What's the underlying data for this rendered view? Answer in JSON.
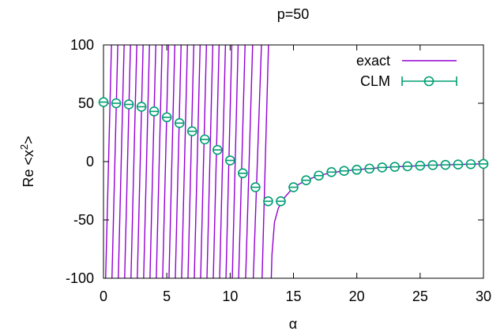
{
  "chart_data": {
    "type": "line",
    "title": "p=50",
    "xlabel": "α",
    "ylabel_base": "Re <x",
    "ylabel_sup": "2",
    "ylabel_end": ">",
    "xlim": [
      0,
      30
    ],
    "ylim": [
      -100,
      100
    ],
    "xticks": [
      0,
      5,
      10,
      15,
      20,
      25,
      30
    ],
    "yticks": [
      -100,
      -50,
      0,
      50,
      100
    ],
    "xtick_labels": [
      "0",
      "5",
      "10",
      "15",
      "20",
      "25",
      "30"
    ],
    "ytick_labels": [
      "-100",
      "-50",
      "0",
      "50",
      "100"
    ],
    "grid": false,
    "legend_position": "top-right",
    "series": [
      {
        "name": "exact",
        "style": "line",
        "color": "#9400d3",
        "asymptote_x": [
          0.15,
          0.65,
          1.15,
          1.65,
          2.15,
          2.65,
          3.15,
          3.65,
          4.15,
          4.65,
          5.15,
          5.65,
          6.15,
          6.65,
          7.15,
          7.65,
          8.15,
          8.65,
          9.15,
          9.65,
          10.15,
          10.65,
          11.2,
          11.8,
          12.5,
          13.05,
          13.4
        ],
        "branch_end_x": 13.0,
        "right_branch": {
          "x": [
            13.25,
            13.3,
            13.5,
            13.8,
            14.2,
            15,
            16,
            17,
            18,
            19,
            20,
            21,
            22,
            23,
            24,
            25,
            26,
            27,
            28,
            29,
            30
          ],
          "y": [
            -100,
            -80,
            -52,
            -40,
            -32,
            -22,
            -16,
            -12,
            -9.5,
            -8,
            -7,
            -6,
            -5.2,
            -4.5,
            -4,
            -3.5,
            -3.1,
            -2.8,
            -2.5,
            -2.2,
            -2
          ]
        }
      },
      {
        "name": "CLM",
        "style": "errorbar-points",
        "color": "#009e73",
        "x": [
          0,
          1,
          2,
          3,
          4,
          5,
          6,
          7,
          8,
          9,
          10,
          11,
          12,
          13,
          14,
          15,
          16,
          17,
          18,
          19,
          20,
          21,
          22,
          23,
          24,
          25,
          26,
          27,
          28,
          29,
          30
        ],
        "y": [
          51,
          50,
          49,
          47,
          43,
          38,
          33,
          26,
          19,
          10,
          1,
          -10,
          -22,
          -34,
          -34,
          -22,
          -16,
          -12,
          -9,
          -8,
          -7,
          -6,
          -5,
          -4.5,
          -4,
          -3.5,
          -3,
          -2.8,
          -2.5,
          -2.2,
          -2
        ],
        "yerr": [
          1,
          1,
          1,
          1,
          1,
          1,
          1,
          1,
          1,
          1,
          1,
          1,
          1,
          1,
          1,
          1,
          1,
          1,
          1,
          1,
          1,
          1,
          1,
          1,
          1,
          1,
          1,
          1,
          1,
          1,
          1
        ]
      }
    ]
  }
}
